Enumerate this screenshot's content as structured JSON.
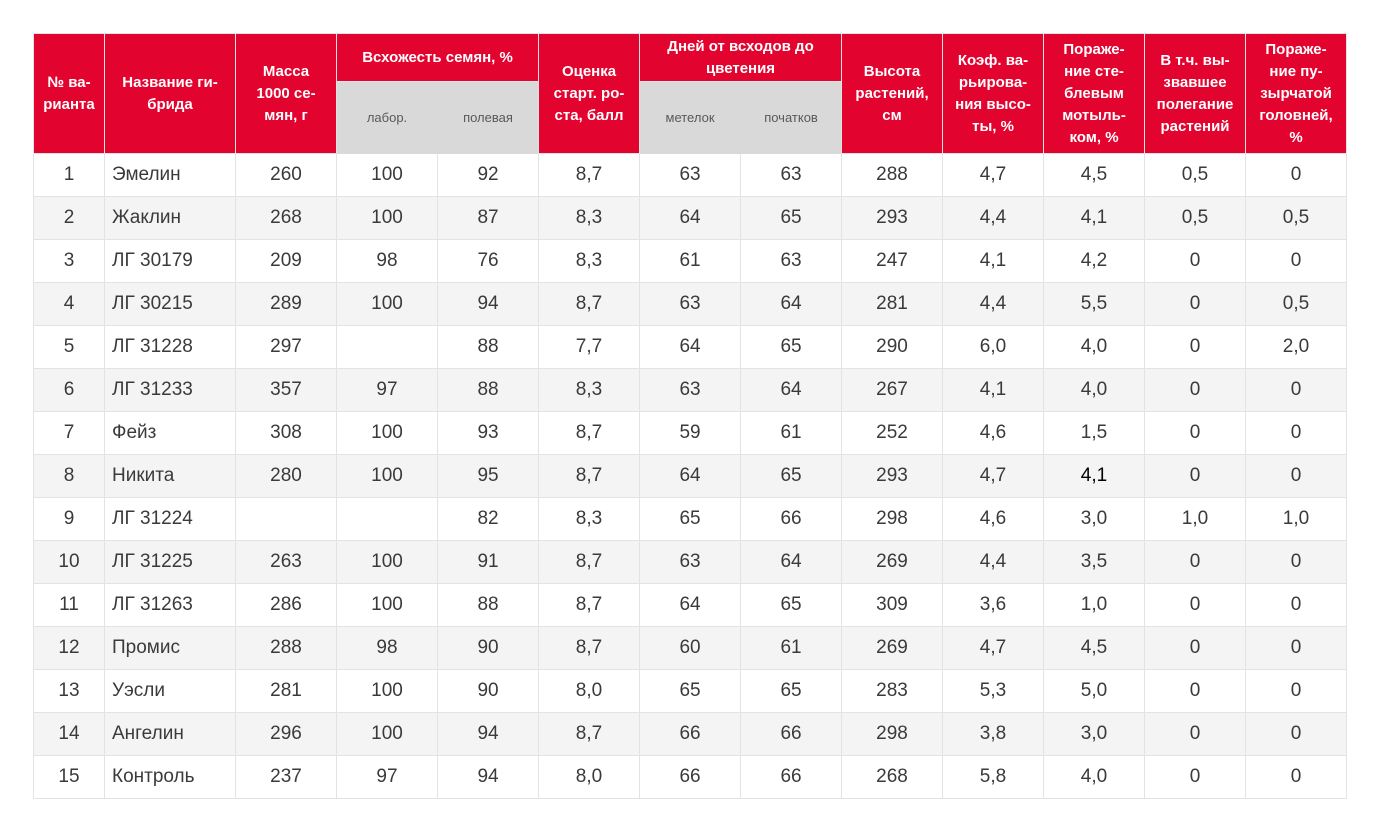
{
  "table": {
    "headers": {
      "variant": "№ ва-\nрианта",
      "hybrid_name": "Название ги-\nбрида",
      "seed_mass": "Масса\n1000 се-\nмян, г",
      "germination": "Всхожесть семян, %",
      "germination_lab": "лабор.",
      "germination_field": "полевая",
      "start_growth": "Оценка\nстарт. ро-\nста, балл",
      "days_to_flowering": "Дней от всходов до\nцветения",
      "days_panicles": "метелок",
      "days_cobs": "початков",
      "plant_height": "Высота\nрастений,\nсм",
      "height_variation": "Коэф. ва-\nрьирова-\nния высо-\nты, %",
      "stem_borer_damage": "Пораже-\nние сте-\nблевым\nмотыль-\nком, %",
      "lodging": "В т.ч. вы-\nзвавшее\nполегание\nрастений",
      "blister_smut_damage": "Пораже-\nние пу-\nзырчатой\nголовней,\n%"
    },
    "rows": [
      {
        "n": "1",
        "name": "Эмелин",
        "mass": "260",
        "lab": "100",
        "field": "92",
        "score": "8,7",
        "panicles": "63",
        "cobs": "63",
        "height": "288",
        "coef": "4,7",
        "borer": "4,5",
        "lodging": "0,5",
        "smut": "0"
      },
      {
        "n": "2",
        "name": "Жаклин",
        "mass": "268",
        "lab": "100",
        "field": "87",
        "score": "8,3",
        "panicles": "64",
        "cobs": "65",
        "height": "293",
        "coef": "4,4",
        "borer": "4,1",
        "lodging": "0,5",
        "smut": "0,5"
      },
      {
        "n": "3",
        "name": "ЛГ 30179",
        "mass": "209",
        "lab": "98",
        "field": "76",
        "score": "8,3",
        "panicles": "61",
        "cobs": "63",
        "height": "247",
        "coef": "4,1",
        "borer": "4,2",
        "lodging": "0",
        "smut": "0"
      },
      {
        "n": "4",
        "name": "ЛГ 30215",
        "mass": "289",
        "lab": "100",
        "field": "94",
        "score": "8,7",
        "panicles": "63",
        "cobs": "64",
        "height": "281",
        "coef": "4,4",
        "borer": "5,5",
        "lodging": "0",
        "smut": "0,5"
      },
      {
        "n": "5",
        "name": "ЛГ 31228",
        "mass": "297",
        "lab": "",
        "field": "88",
        "score": "7,7",
        "panicles": "64",
        "cobs": "65",
        "height": "290",
        "coef": "6,0",
        "borer": "4,0",
        "lodging": "0",
        "smut": "2,0"
      },
      {
        "n": "6",
        "name": "ЛГ 31233",
        "mass": "357",
        "lab": "97",
        "field": "88",
        "score": "8,3",
        "panicles": "63",
        "cobs": "64",
        "height": "267",
        "coef": "4,1",
        "borer": "4,0",
        "lodging": "0",
        "smut": "0"
      },
      {
        "n": "7",
        "name": "Фейз",
        "mass": "308",
        "lab": "100",
        "field": "93",
        "score": "8,7",
        "panicles": "59",
        "cobs": "61",
        "height": "252",
        "coef": "4,6",
        "borer": "1,5",
        "lodging": "0",
        "smut": "0"
      },
      {
        "n": "8",
        "name": "Никита",
        "mass": "280",
        "lab": "100",
        "field": "95",
        "score": "8,7",
        "panicles": "64",
        "cobs": "65",
        "height": "293",
        "coef": "4,7",
        "borer": "4,1",
        "lodging": "0",
        "smut": "0"
      },
      {
        "n": "9",
        "name": "ЛГ 31224",
        "mass": "",
        "lab": "",
        "field": "82",
        "score": "8,3",
        "panicles": "65",
        "cobs": "66",
        "height": "298",
        "coef": "4,6",
        "borer": "3,0",
        "lodging": "1,0",
        "smut": "1,0"
      },
      {
        "n": "10",
        "name": "ЛГ 31225",
        "mass": "263",
        "lab": "100",
        "field": "91",
        "score": "8,7",
        "panicles": "63",
        "cobs": "64",
        "height": "269",
        "coef": "4,4",
        "borer": "3,5",
        "lodging": "0",
        "smut": "0"
      },
      {
        "n": "11",
        "name": "ЛГ 31263",
        "mass": "286",
        "lab": "100",
        "field": "88",
        "score": "8,7",
        "panicles": "64",
        "cobs": "65",
        "height": "309",
        "coef": "3,6",
        "borer": "1,0",
        "lodging": "0",
        "smut": "0"
      },
      {
        "n": "12",
        "name": "Промис",
        "mass": "288",
        "lab": "98",
        "field": "90",
        "score": "8,7",
        "panicles": "60",
        "cobs": "61",
        "height": "269",
        "coef": "4,7",
        "borer": "4,5",
        "lodging": "0",
        "smut": "0"
      },
      {
        "n": "13",
        "name": "Уэсли",
        "mass": "281",
        "lab": "100",
        "field": "90",
        "score": "8,0",
        "panicles": "65",
        "cobs": "65",
        "height": "283",
        "coef": "5,3",
        "borer": "5,0",
        "lodging": "0",
        "smut": "0"
      },
      {
        "n": "14",
        "name": "Ангелин",
        "mass": "296",
        "lab": "100",
        "field": "94",
        "score": "8,7",
        "panicles": "66",
        "cobs": "66",
        "height": "298",
        "coef": "3,8",
        "borer": "3,0",
        "lodging": "0",
        "smut": "0"
      },
      {
        "n": "15",
        "name": "Контроль",
        "mass": "237",
        "lab": "97",
        "field": "94",
        "score": "8,0",
        "panicles": "66",
        "cobs": "66",
        "height": "268",
        "coef": "5,8",
        "borer": "4,0",
        "lodging": "0",
        "smut": "0"
      }
    ]
  }
}
